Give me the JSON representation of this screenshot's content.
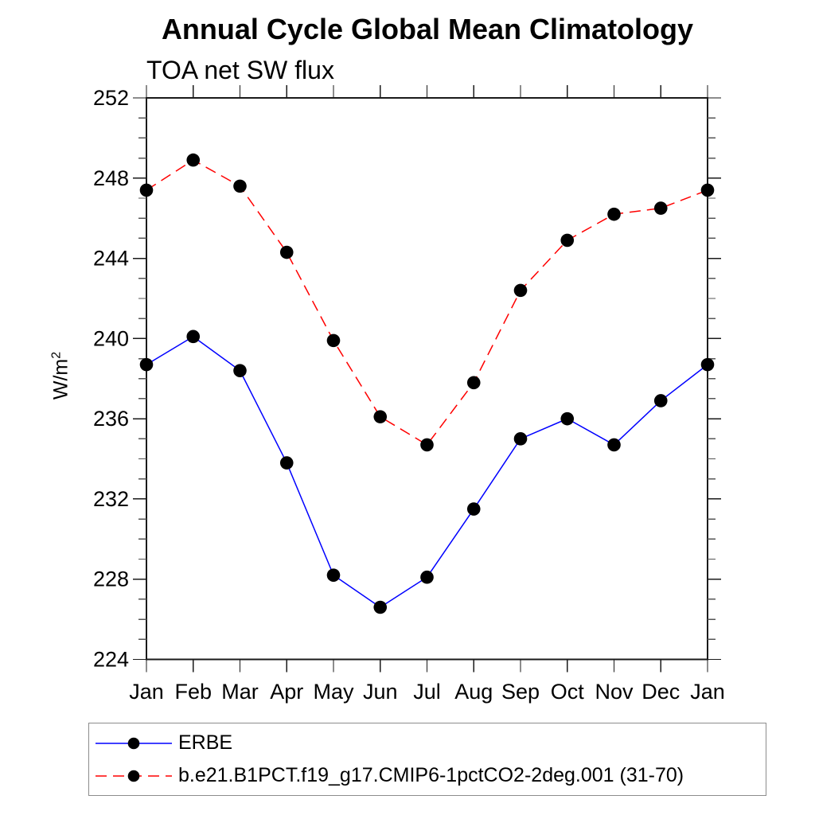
{
  "page": {
    "background": "#ffffff"
  },
  "chart_data": {
    "type": "line",
    "title": "Annual Cycle Global Mean Climatology",
    "subtitle": "TOA net SW flux",
    "ylabel": "W/m²",
    "ylabel_base": "W/m",
    "ylabel_sup": "2",
    "xlabel": "",
    "ylim": [
      224,
      252
    ],
    "y_ticks": [
      224,
      228,
      232,
      236,
      240,
      244,
      248,
      252
    ],
    "y_major_step": 4,
    "y_minor_step": 1,
    "grid": false,
    "legend_position": "bottom-left-box",
    "categories": [
      "Jan",
      "Feb",
      "Mar",
      "Apr",
      "May",
      "Jun",
      "Jul",
      "Aug",
      "Sep",
      "Oct",
      "Nov",
      "Dec",
      "Jan"
    ],
    "series": [
      {
        "name": "ERBE",
        "color": "#0000ff",
        "line_style": "solid",
        "marker": "filled-circle",
        "marker_color": "#000000",
        "values": [
          238.7,
          240.1,
          238.4,
          233.8,
          228.2,
          226.6,
          228.1,
          231.5,
          235.0,
          236.0,
          234.7,
          236.9,
          238.7
        ]
      },
      {
        "name": "b.e21.B1PCT.f19_g17.CMIP6-1pctCO2-2deg.001 (31-70)",
        "color": "#ff0000",
        "line_style": "dashed",
        "marker": "filled-circle",
        "marker_color": "#000000",
        "values": [
          247.4,
          248.9,
          247.6,
          244.3,
          239.9,
          236.1,
          234.7,
          237.8,
          242.4,
          244.9,
          246.2,
          246.5,
          247.4
        ]
      }
    ]
  }
}
